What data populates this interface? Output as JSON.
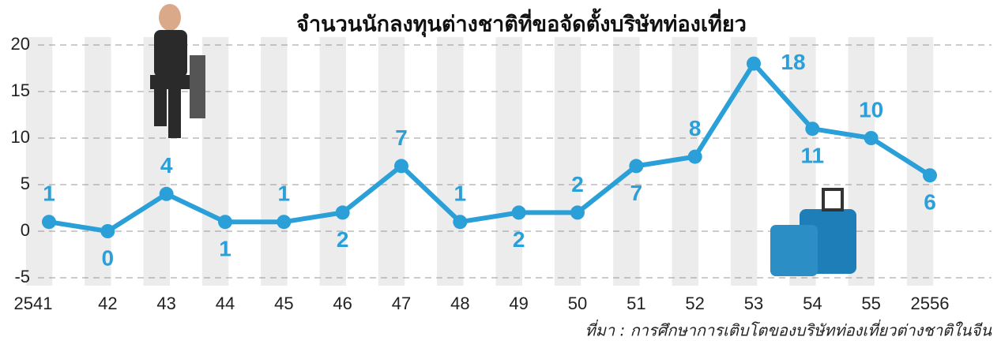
{
  "chart_data": {
    "type": "line",
    "title": "จำนวนนักลงทุนต่างชาติที่ขอจัดตั้งบริษัทท่องเที่ยว",
    "source": "ที่มา : การศึกษาการเติบโตของบริษัทท่องเที่ยวต่างชาติในจีน",
    "categories": [
      "2541",
      "42",
      "43",
      "44",
      "45",
      "46",
      "47",
      "48",
      "49",
      "50",
      "51",
      "52",
      "53",
      "54",
      "55",
      "2556"
    ],
    "values": [
      1,
      0,
      4,
      1,
      1,
      2,
      7,
      1,
      2,
      2,
      7,
      8,
      18,
      11,
      10,
      6
    ],
    "color": "#2a9fd8",
    "ylim": [
      -5,
      20
    ],
    "yticks": [
      -5,
      0,
      5,
      10,
      15,
      20
    ],
    "grid": true
  }
}
